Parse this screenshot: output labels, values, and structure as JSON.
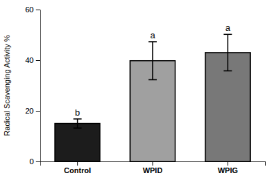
{
  "chart_data": {
    "type": "bar",
    "categories": [
      "Control",
      "WPID",
      "WPIG"
    ],
    "values": [
      15.0,
      39.8,
      43.0
    ],
    "errors": [
      1.8,
      7.5,
      7.2
    ],
    "letters": [
      "b",
      "a",
      "a"
    ],
    "colors": [
      "#1c1c1c",
      "#a0a0a0",
      "#787878"
    ],
    "ylabel": "Radical Scavenging Activity %",
    "ylim": [
      0,
      60
    ],
    "yticks": [
      0,
      20,
      40,
      60
    ]
  }
}
